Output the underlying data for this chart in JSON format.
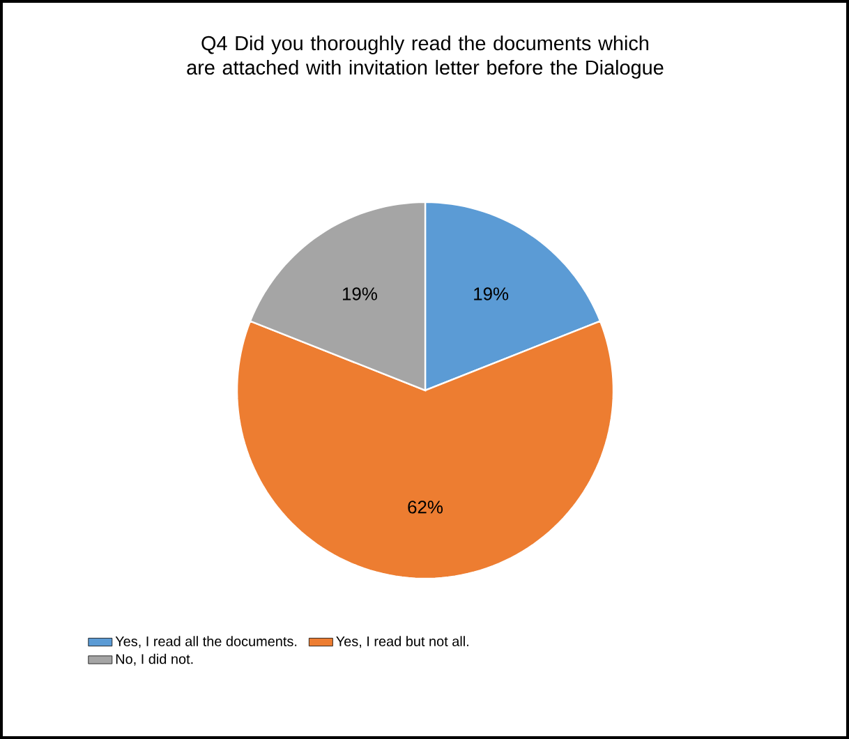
{
  "chart_data": {
    "type": "pie",
    "title": "Q4  Did you thoroughly read the documents which are attached with invitation letter before the Dialogue",
    "categories": [
      "Yes, I read all the documents.",
      "Yes, I read but not all.",
      "No, I did not."
    ],
    "values": [
      19,
      62,
      19
    ],
    "colors": [
      "#5b9bd5",
      "#ed7d31",
      "#a5a5a5"
    ],
    "value_labels": [
      "19%",
      "62%",
      "19%"
    ],
    "legend": "bottom"
  }
}
